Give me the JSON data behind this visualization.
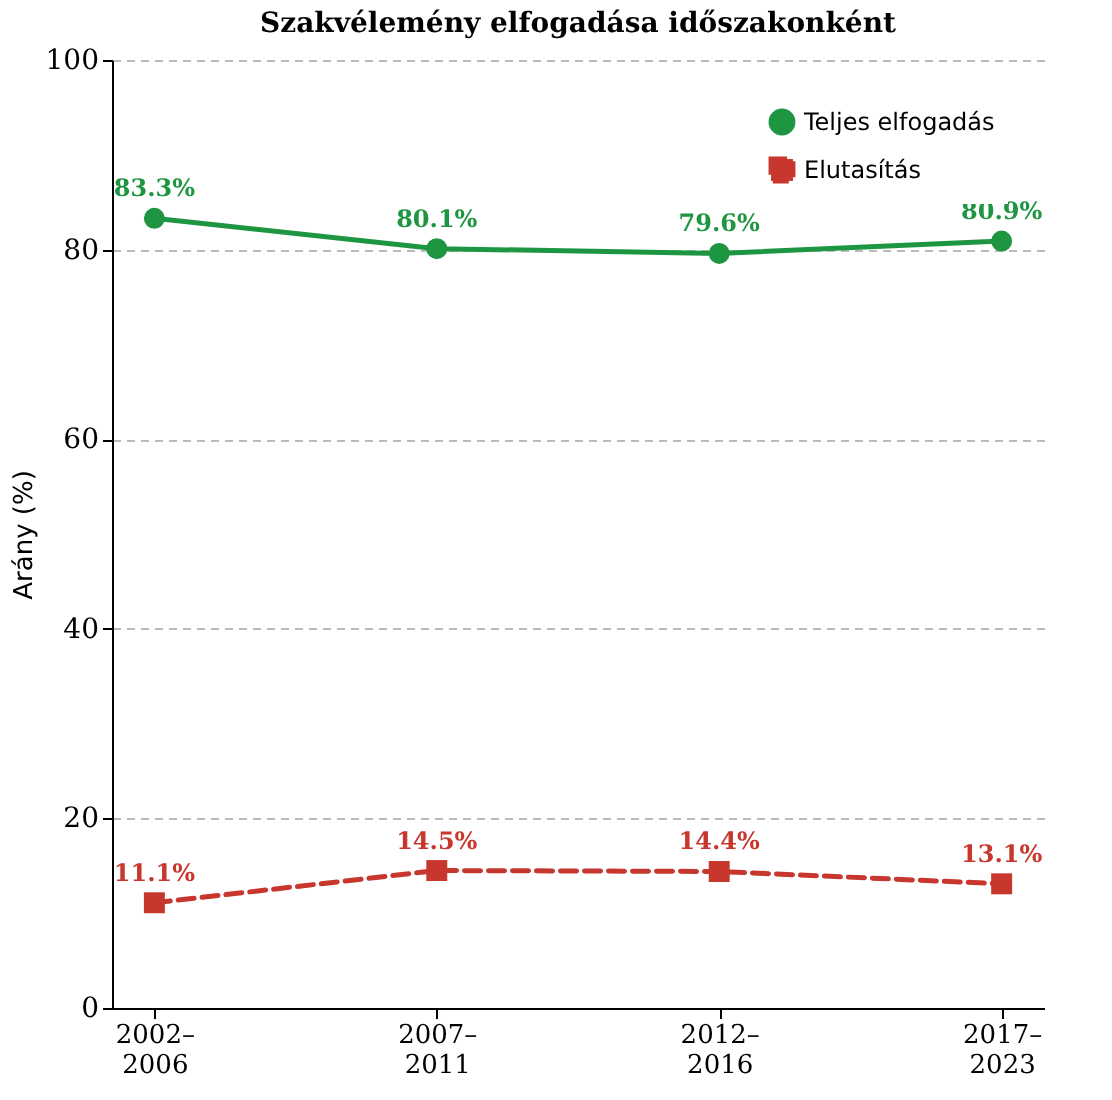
{
  "chart_data": {
    "type": "line",
    "title": "Szakvélemény elfogadása időszakonként",
    "ylabel": "Arány (%)",
    "categories": [
      "2002–2006",
      "2007–2011",
      "2012–2016",
      "2017–2023"
    ],
    "series": [
      {
        "name": "Teljes elfogadás",
        "color": "#1e9641",
        "marker": "circle",
        "line_style": "solid",
        "values": [
          83.3,
          80.1,
          79.6,
          80.9
        ],
        "value_labels": [
          "83.3%",
          "80.1%",
          "79.6%",
          "80.9%"
        ]
      },
      {
        "name": "Elutasítás",
        "color": "#c8372d",
        "marker": "square",
        "line_style": "dashed",
        "values": [
          11.1,
          14.5,
          14.4,
          13.1
        ],
        "value_labels": [
          "11.1%",
          "14.5%",
          "14.4%",
          "13.1%"
        ]
      }
    ],
    "ylim": [
      0,
      100
    ],
    "yticks": [
      0,
      20,
      40,
      60,
      80,
      100
    ],
    "grid": "y",
    "legend": "top right"
  }
}
